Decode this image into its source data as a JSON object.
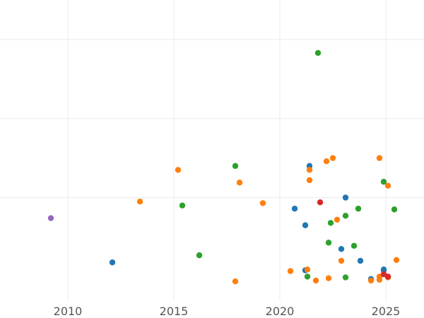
{
  "chart_data": {
    "type": "scatter",
    "title": "",
    "xlabel": "",
    "ylabel": "",
    "grid": true,
    "legend": "none",
    "xlim": [
      2006.8,
      2026.8
    ],
    "ylim": [
      -0.3,
      3.5
    ],
    "x_ticks": [
      "2010",
      "2015",
      "2020",
      "2025"
    ],
    "x_tick_values": [
      2010,
      2015,
      2020,
      2025
    ],
    "y_tick_values": [
      1,
      2,
      3
    ],
    "series": [
      {
        "color": "#1f77b4",
        "points": [
          [
            2012.1,
            0.18
          ],
          [
            2020.7,
            0.86
          ],
          [
            2021.2,
            0.65
          ],
          [
            2021.4,
            1.4
          ],
          [
            2021.2,
            0.08
          ],
          [
            2022.9,
            0.35
          ],
          [
            2023.1,
            1.0
          ],
          [
            2023.8,
            0.2
          ],
          [
            2024.3,
            -0.03
          ],
          [
            2024.9,
            0.08
          ],
          [
            2024.9,
            0.09
          ]
        ]
      },
      {
        "color": "#ff7f0e",
        "points": [
          [
            2013.4,
            0.95
          ],
          [
            2015.2,
            1.35
          ],
          [
            2017.9,
            -0.06
          ],
          [
            2018.1,
            1.19
          ],
          [
            2019.2,
            0.93
          ],
          [
            2020.5,
            0.07
          ],
          [
            2021.3,
            0.09
          ],
          [
            2021.4,
            1.35
          ],
          [
            2021.4,
            1.22
          ],
          [
            2021.7,
            -0.05
          ],
          [
            2022.2,
            1.46
          ],
          [
            2022.3,
            -0.02
          ],
          [
            2022.5,
            1.5
          ],
          [
            2022.7,
            0.72
          ],
          [
            2022.9,
            0.2
          ],
          [
            2024.3,
            -0.05
          ],
          [
            2024.7,
            -0.04
          ],
          [
            2024.7,
            0.0
          ],
          [
            2024.7,
            1.5
          ],
          [
            2025.1,
            1.15
          ],
          [
            2025.1,
            -0.01
          ],
          [
            2025.1,
            0.0
          ],
          [
            2025.5,
            0.21
          ]
        ]
      },
      {
        "color": "#2ca02c",
        "points": [
          [
            2015.4,
            0.9
          ],
          [
            2016.2,
            0.27
          ],
          [
            2017.9,
            1.4
          ],
          [
            2021.3,
            0.0
          ],
          [
            2021.8,
            2.83
          ],
          [
            2022.3,
            0.43
          ],
          [
            2022.4,
            0.68
          ],
          [
            2023.1,
            0.77
          ],
          [
            2023.1,
            -0.01
          ],
          [
            2023.5,
            0.39
          ],
          [
            2023.7,
            0.86
          ],
          [
            2024.9,
            1.2
          ],
          [
            2025.4,
            0.85
          ]
        ]
      },
      {
        "color": "#d62728",
        "points": [
          [
            2021.9,
            0.94
          ],
          [
            2024.9,
            0.03
          ],
          [
            2025.1,
            0.0
          ]
        ]
      },
      {
        "color": "#9467bd",
        "points": [
          [
            2009.2,
            0.74
          ]
        ]
      }
    ]
  }
}
